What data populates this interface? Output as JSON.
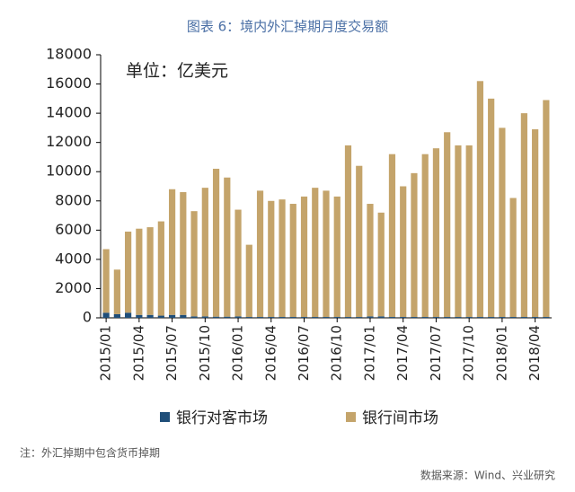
{
  "chart_data": {
    "type": "stacked_bar",
    "title": "图表 6：境内外汇掉期月度交易额",
    "annotation": "单位：亿美元",
    "note": "注：外汇掉期中包含货币掉期",
    "source": "数据来源：Wind、兴业研究",
    "categories": [
      "2015/01",
      null,
      null,
      "2015/04",
      null,
      null,
      "2015/07",
      null,
      null,
      "2015/10",
      null,
      null,
      "2016/01",
      null,
      null,
      "2016/04",
      null,
      null,
      "2016/07",
      null,
      null,
      "2016/10",
      null,
      null,
      "2017/01",
      null,
      null,
      "2017/04",
      null,
      null,
      "2017/07",
      null,
      null,
      "2017/10",
      null,
      null,
      "2018/01",
      null,
      null,
      "2018/04",
      null
    ],
    "series": [
      {
        "name": "银行对客市场",
        "color": "#1f4e79",
        "values": [
          350,
          250,
          350,
          200,
          200,
          150,
          200,
          200,
          100,
          100,
          80,
          80,
          100,
          60,
          60,
          60,
          60,
          60,
          60,
          60,
          60,
          60,
          60,
          60,
          100,
          100,
          60,
          60,
          60,
          60,
          60,
          60,
          60,
          60,
          60,
          60,
          60,
          60,
          60,
          60,
          60
        ]
      },
      {
        "name": "银行间市场",
        "color": "#c4a46b",
        "values": [
          4350,
          3050,
          5550,
          5900,
          6000,
          6450,
          8600,
          8400,
          7200,
          8800,
          10120,
          9520,
          7300,
          4940,
          8640,
          7940,
          8040,
          7740,
          8240,
          8840,
          8640,
          8240,
          11740,
          10340,
          7700,
          7100,
          11140,
          8940,
          9840,
          11140,
          11540,
          12640,
          11740,
          11740,
          16140,
          14940,
          12940,
          8140,
          13940,
          12840,
          14840
        ]
      }
    ],
    "ylim": [
      0,
      18000
    ],
    "yticks": [
      0,
      2000,
      4000,
      6000,
      8000,
      10000,
      12000,
      14000,
      16000,
      18000
    ]
  }
}
